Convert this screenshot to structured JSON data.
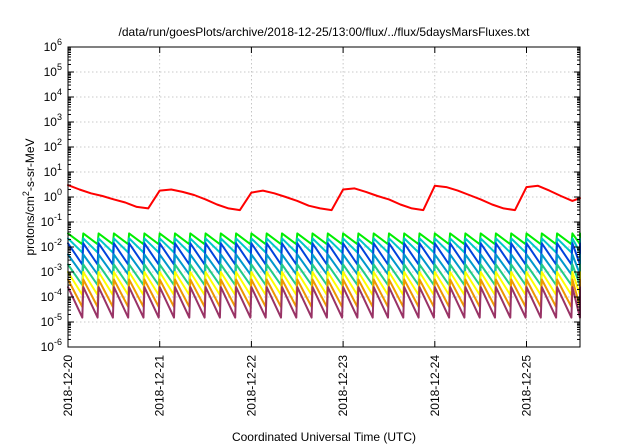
{
  "chart_data": {
    "type": "line",
    "title": "/data/run/goesPlots/archive/2018-12-25/13:00/flux/../flux/5daysMarsFluxes.txt",
    "xlabel": "Coordinated Universal Time (UTC)",
    "ylabel": {
      "text": "protons/cm2-s-sr-MeV",
      "parts": [
        "protons/cm",
        "2",
        "-s-sr-MeV"
      ]
    },
    "y_scale": "log",
    "ylim": [
      1e-06,
      1000000.0
    ],
    "y_ticks": [
      {
        "base": "10",
        "exp": "6"
      },
      {
        "base": "10",
        "exp": "5"
      },
      {
        "base": "10",
        "exp": "4"
      },
      {
        "base": "10",
        "exp": "3"
      },
      {
        "base": "10",
        "exp": "2"
      },
      {
        "base": "10",
        "exp": "1"
      },
      {
        "base": "10",
        "exp": "0"
      },
      {
        "base": "10",
        "exp": "-1"
      },
      {
        "base": "10",
        "exp": "-2"
      },
      {
        "base": "10",
        "exp": "-3"
      },
      {
        "base": "10",
        "exp": "-4"
      },
      {
        "base": "10",
        "exp": "-5"
      },
      {
        "base": "10",
        "exp": "-6"
      }
    ],
    "xlim": [
      "2018-12-20T00:00",
      "2018-12-25T14:00"
    ],
    "x_ticks": [
      "2018-12-20",
      "2018-12-21",
      "2018-12-22",
      "2018-12-23",
      "2018-12-24",
      "2018-12-25"
    ],
    "grid": true,
    "series": [
      {
        "color": "#ff0000",
        "x": [
          "2018-12-20T00:00",
          "2018-12-20T03:00",
          "2018-12-20T06:00",
          "2018-12-20T09:00",
          "2018-12-20T12:00",
          "2018-12-20T15:00",
          "2018-12-20T18:00",
          "2018-12-20T21:00",
          "2018-12-21T00:00",
          "2018-12-21T03:00",
          "2018-12-21T06:00",
          "2018-12-21T09:00",
          "2018-12-21T12:00",
          "2018-12-21T15:00",
          "2018-12-21T18:00",
          "2018-12-21T21:00",
          "2018-12-22T00:00",
          "2018-12-22T03:00",
          "2018-12-22T06:00",
          "2018-12-22T09:00",
          "2018-12-22T12:00",
          "2018-12-22T15:00",
          "2018-12-22T18:00",
          "2018-12-22T21:00",
          "2018-12-23T00:00",
          "2018-12-23T03:00",
          "2018-12-23T06:00",
          "2018-12-23T09:00",
          "2018-12-23T12:00",
          "2018-12-23T15:00",
          "2018-12-23T18:00",
          "2018-12-23T21:00",
          "2018-12-24T00:00",
          "2018-12-24T03:00",
          "2018-12-24T06:00",
          "2018-12-24T09:00",
          "2018-12-24T12:00",
          "2018-12-24T15:00",
          "2018-12-24T18:00",
          "2018-12-24T21:00",
          "2018-12-25T00:00",
          "2018-12-25T03:00",
          "2018-12-25T06:00",
          "2018-12-25T09:00",
          "2018-12-25T12:00",
          "2018-12-25T14:00"
        ],
        "y": [
          3,
          2,
          1.4,
          1.1,
          0.8,
          0.6,
          0.4,
          0.35,
          1.8,
          2,
          1.6,
          1.2,
          0.8,
          0.5,
          0.35,
          0.3,
          1.5,
          1.8,
          1.4,
          1,
          0.7,
          0.45,
          0.35,
          0.3,
          2,
          2.2,
          1.6,
          1.1,
          0.8,
          0.5,
          0.35,
          0.3,
          2.8,
          2.5,
          1.8,
          1.2,
          0.8,
          0.5,
          0.35,
          0.3,
          2.5,
          2.8,
          1.8,
          1.1,
          0.7,
          0.9
        ]
      },
      {
        "color": "#00ee00",
        "x": [
          "2018-12-20T00:00",
          "2018-12-25T14:00"
        ],
        "y": [
          0.03,
          0.03
        ],
        "peak": 0.035,
        "trough": 0.013
      },
      {
        "color": "#00c8c8",
        "x": [
          "2018-12-20T00:00",
          "2018-12-25T14:00"
        ],
        "y": [
          0.02,
          0.02
        ],
        "peak": 0.022,
        "trough": 0.006
      },
      {
        "color": "#0044dd",
        "x": [
          "2018-12-20T00:00",
          "2018-12-25T14:00"
        ],
        "y": [
          0.012,
          0.012
        ],
        "peak": 0.014,
        "trough": 0.002
      },
      {
        "color": "#0099cc",
        "x": [
          "2018-12-20T00:00",
          "2018-12-25T14:00"
        ],
        "y": [
          0.004,
          0.004
        ],
        "peak": 0.005,
        "trough": 0.0008
      },
      {
        "color": "#22cc88",
        "x": [
          "2018-12-20T00:00",
          "2018-12-25T14:00"
        ],
        "y": [
          0.0015,
          0.0015
        ],
        "peak": 0.002,
        "trough": 0.0003
      },
      {
        "color": "#ffff00",
        "x": [
          "2018-12-20T00:00",
          "2018-12-25T14:00"
        ],
        "y": [
          0.0008,
          0.0008
        ],
        "peak": 0.001,
        "trough": 0.00012
      },
      {
        "color": "#ee9900",
        "x": [
          "2018-12-20T00:00",
          "2018-12-25T14:00"
        ],
        "y": [
          0.0004,
          0.0004
        ],
        "peak": 0.0005,
        "trough": 4e-05
      },
      {
        "color": "#993366",
        "x": [
          "2018-12-20T00:00",
          "2018-12-25T14:00"
        ],
        "y": [
          0.0002,
          0.0002
        ],
        "peak": 0.00025,
        "trough": 1.5e-05
      }
    ]
  }
}
